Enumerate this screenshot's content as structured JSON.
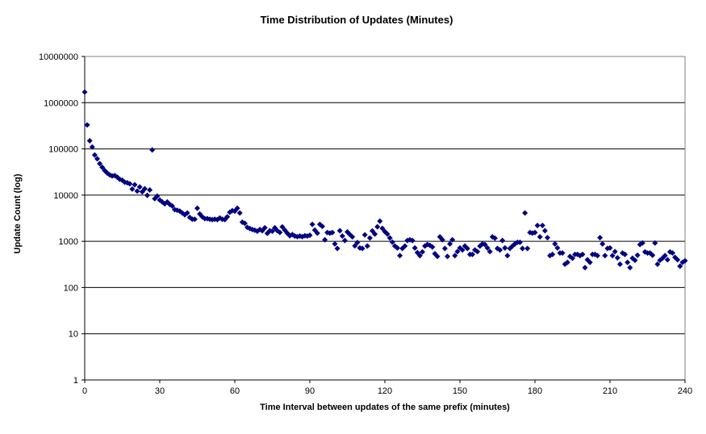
{
  "page": {
    "background_color": "#ffffff"
  },
  "chart_data": {
    "type": "scatter",
    "title": "Time Distribution of Updates (Minutes)",
    "xlabel": "Time Interval between updates of the same prefix (minutes)",
    "ylabel": "Update Count (log)",
    "y_scale": "log",
    "xlim": [
      0,
      240
    ],
    "ylim": [
      1,
      10000000
    ],
    "x_ticks": [
      0,
      30,
      60,
      90,
      120,
      150,
      180,
      210,
      240
    ],
    "y_ticks": [
      1,
      10,
      100,
      1000,
      10000,
      100000,
      1000000,
      10000000
    ],
    "grid": "horizontal-only",
    "legend": "none",
    "marker": {
      "shape": "diamond",
      "color": "#000080",
      "size": 7
    },
    "colors": {
      "gridline": "#000000",
      "plot_border": "#808080",
      "axis_line": "#000000",
      "text": "#000000"
    },
    "series": [
      {
        "name": "update-count",
        "points": [
          [
            0,
            1700000
          ],
          [
            1,
            330000
          ],
          [
            2,
            150000
          ],
          [
            3,
            110000
          ],
          [
            4,
            74000
          ],
          [
            5,
            61000
          ],
          [
            6,
            48000
          ],
          [
            7,
            40000
          ],
          [
            8,
            34000
          ],
          [
            9,
            30000
          ],
          [
            10,
            27500
          ],
          [
            11,
            26000
          ],
          [
            12,
            26500
          ],
          [
            13,
            24500
          ],
          [
            14,
            22000
          ],
          [
            15,
            21000
          ],
          [
            16,
            19000
          ],
          [
            17,
            18500
          ],
          [
            18,
            17500
          ],
          [
            19,
            13500
          ],
          [
            20,
            16800
          ],
          [
            21,
            12200
          ],
          [
            22,
            15000
          ],
          [
            23,
            11800
          ],
          [
            24,
            13700
          ],
          [
            25,
            9900
          ],
          [
            26,
            12900
          ],
          [
            27,
            95000
          ],
          [
            28,
            8400
          ],
          [
            29,
            9500
          ],
          [
            30,
            7800
          ],
          [
            31,
            7100
          ],
          [
            32,
            6500
          ],
          [
            33,
            7100
          ],
          [
            34,
            6300
          ],
          [
            35,
            5800
          ],
          [
            36,
            4850
          ],
          [
            37,
            4700
          ],
          [
            38,
            4500
          ],
          [
            39,
            4100
          ],
          [
            40,
            3750
          ],
          [
            41,
            4100
          ],
          [
            42,
            3300
          ],
          [
            43,
            3000
          ],
          [
            44,
            3000
          ],
          [
            45,
            5200
          ],
          [
            46,
            3900
          ],
          [
            47,
            3400
          ],
          [
            48,
            3100
          ],
          [
            49,
            3100
          ],
          [
            50,
            3000
          ],
          [
            51,
            2950
          ],
          [
            52,
            3000
          ],
          [
            53,
            2950
          ],
          [
            54,
            3200
          ],
          [
            55,
            3000
          ],
          [
            56,
            2950
          ],
          [
            57,
            3400
          ],
          [
            58,
            4250
          ],
          [
            59,
            4600
          ],
          [
            60,
            4500
          ],
          [
            61,
            5200
          ],
          [
            62,
            4100
          ],
          [
            63,
            2600
          ],
          [
            64,
            2450
          ],
          [
            65,
            2000
          ],
          [
            66,
            1890
          ],
          [
            67,
            1800
          ],
          [
            68,
            1740
          ],
          [
            69,
            1650
          ],
          [
            70,
            1800
          ],
          [
            71,
            1700
          ],
          [
            72,
            1960
          ],
          [
            73,
            1490
          ],
          [
            74,
            1700
          ],
          [
            75,
            1650
          ],
          [
            76,
            1960
          ],
          [
            77,
            1700
          ],
          [
            78,
            1560
          ],
          [
            79,
            2050
          ],
          [
            80,
            1750
          ],
          [
            81,
            1500
          ],
          [
            82,
            1320
          ],
          [
            83,
            1400
          ],
          [
            84,
            1300
          ],
          [
            85,
            1260
          ],
          [
            86,
            1300
          ],
          [
            87,
            1260
          ],
          [
            88,
            1320
          ],
          [
            89,
            1300
          ],
          [
            90,
            1350
          ],
          [
            91,
            2330
          ],
          [
            92,
            1750
          ],
          [
            93,
            1500
          ],
          [
            94,
            2330
          ],
          [
            95,
            2100
          ],
          [
            96,
            1080
          ],
          [
            97,
            1550
          ],
          [
            98,
            1500
          ],
          [
            99,
            1550
          ],
          [
            100,
            880
          ],
          [
            101,
            700
          ],
          [
            102,
            1700
          ],
          [
            103,
            1300
          ],
          [
            104,
            1040
          ],
          [
            105,
            1600
          ],
          [
            106,
            1400
          ],
          [
            107,
            1250
          ],
          [
            108,
            800
          ],
          [
            109,
            940
          ],
          [
            110,
            720
          ],
          [
            111,
            700
          ],
          [
            112,
            1380
          ],
          [
            113,
            790
          ],
          [
            114,
            1180
          ],
          [
            115,
            1680
          ],
          [
            116,
            1440
          ],
          [
            117,
            2060
          ],
          [
            118,
            2740
          ],
          [
            119,
            1900
          ],
          [
            120,
            1620
          ],
          [
            121,
            1440
          ],
          [
            122,
            1180
          ],
          [
            123,
            960
          ],
          [
            124,
            790
          ],
          [
            125,
            720
          ],
          [
            126,
            490
          ],
          [
            127,
            700
          ],
          [
            128,
            790
          ],
          [
            129,
            1040
          ],
          [
            130,
            1080
          ],
          [
            131,
            1040
          ],
          [
            132,
            720
          ],
          [
            133,
            570
          ],
          [
            134,
            490
          ],
          [
            135,
            590
          ],
          [
            136,
            790
          ],
          [
            137,
            850
          ],
          [
            138,
            820
          ],
          [
            139,
            750
          ],
          [
            140,
            540
          ],
          [
            141,
            470
          ],
          [
            142,
            1250
          ],
          [
            143,
            1080
          ],
          [
            144,
            700
          ],
          [
            145,
            470
          ],
          [
            146,
            880
          ],
          [
            147,
            1080
          ],
          [
            148,
            490
          ],
          [
            149,
            600
          ],
          [
            150,
            720
          ],
          [
            151,
            650
          ],
          [
            152,
            790
          ],
          [
            153,
            700
          ],
          [
            154,
            520
          ],
          [
            155,
            520
          ],
          [
            156,
            650
          ],
          [
            157,
            600
          ],
          [
            158,
            790
          ],
          [
            159,
            880
          ],
          [
            160,
            850
          ],
          [
            161,
            720
          ],
          [
            162,
            600
          ],
          [
            163,
            1250
          ],
          [
            164,
            1170
          ],
          [
            165,
            700
          ],
          [
            166,
            650
          ],
          [
            167,
            1040
          ],
          [
            168,
            720
          ],
          [
            169,
            490
          ],
          [
            170,
            700
          ],
          [
            171,
            790
          ],
          [
            172,
            880
          ],
          [
            173,
            950
          ],
          [
            174,
            950
          ],
          [
            175,
            700
          ],
          [
            176,
            4100
          ],
          [
            177,
            700
          ],
          [
            178,
            1550
          ],
          [
            179,
            1500
          ],
          [
            180,
            1550
          ],
          [
            181,
            2200
          ],
          [
            182,
            1250
          ],
          [
            183,
            2200
          ],
          [
            184,
            1700
          ],
          [
            185,
            1200
          ],
          [
            186,
            490
          ],
          [
            187,
            520
          ],
          [
            188,
            880
          ],
          [
            189,
            720
          ],
          [
            190,
            560
          ],
          [
            191,
            560
          ],
          [
            192,
            320
          ],
          [
            193,
            350
          ],
          [
            194,
            470
          ],
          [
            195,
            430
          ],
          [
            196,
            520
          ],
          [
            197,
            520
          ],
          [
            198,
            490
          ],
          [
            199,
            520
          ],
          [
            200,
            270
          ],
          [
            201,
            400
          ],
          [
            202,
            350
          ],
          [
            203,
            520
          ],
          [
            204,
            520
          ],
          [
            205,
            490
          ],
          [
            206,
            1200
          ],
          [
            207,
            880
          ],
          [
            208,
            490
          ],
          [
            209,
            700
          ],
          [
            210,
            720
          ],
          [
            211,
            490
          ],
          [
            212,
            600
          ],
          [
            213,
            440
          ],
          [
            214,
            320
          ],
          [
            215,
            560
          ],
          [
            216,
            520
          ],
          [
            217,
            350
          ],
          [
            218,
            270
          ],
          [
            219,
            430
          ],
          [
            220,
            390
          ],
          [
            221,
            500
          ],
          [
            222,
            850
          ],
          [
            223,
            920
          ],
          [
            224,
            590
          ],
          [
            225,
            560
          ],
          [
            226,
            560
          ],
          [
            227,
            500
          ],
          [
            228,
            920
          ],
          [
            229,
            320
          ],
          [
            230,
            390
          ],
          [
            231,
            430
          ],
          [
            232,
            490
          ],
          [
            233,
            400
          ],
          [
            234,
            590
          ],
          [
            235,
            560
          ],
          [
            236,
            450
          ],
          [
            237,
            400
          ],
          [
            238,
            290
          ],
          [
            239,
            350
          ],
          [
            240,
            380
          ]
        ]
      }
    ]
  }
}
